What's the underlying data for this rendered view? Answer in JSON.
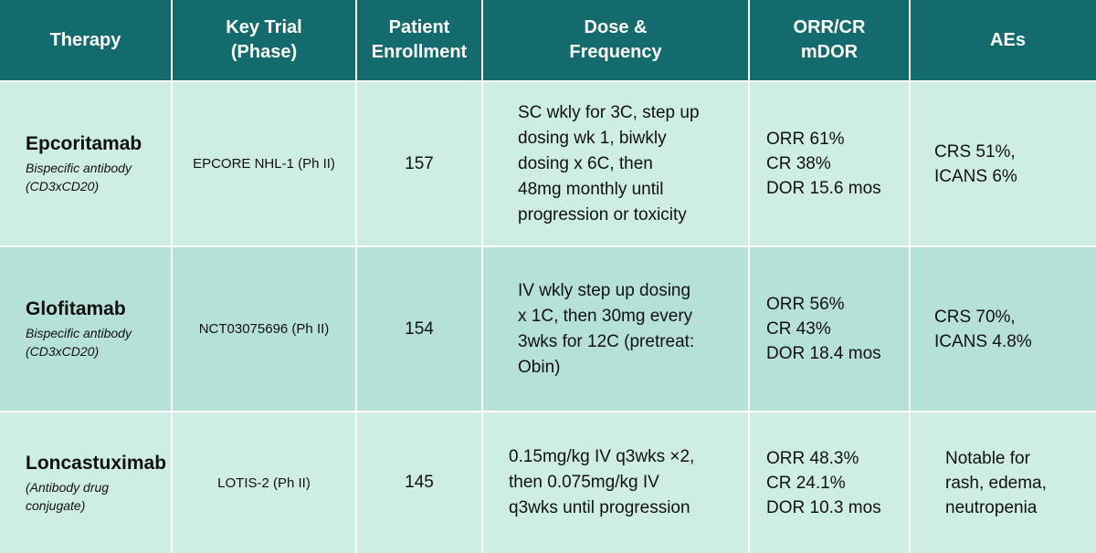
{
  "headers": {
    "therapy": "Therapy",
    "trial": "Key Trial\n(Phase)",
    "enrollment": "Patient\nEnrollment",
    "dose": "Dose &\nFrequency",
    "orr": "ORR/CR\nmDOR",
    "aes": "AEs"
  },
  "rows": [
    {
      "therapy": "Epcoritamab",
      "type": "Bispecific antibody\n(CD3xCD20)",
      "trial": "EPCORE NHL-1 (Ph II)",
      "enrollment": "157",
      "dose": "SC wkly for 3C, step up\ndosing wk 1, biwkly\ndosing x 6C, then\n48mg monthly until\nprogression or toxicity",
      "orr": "ORR 61%\nCR 38%\nDOR 15.6 mos",
      "aes": "CRS 51%,\nICANS 6%"
    },
    {
      "therapy": "Glofitamab",
      "type": "Bispecific antibody\n(CD3xCD20)",
      "trial": "NCT03075696 (Ph II)",
      "enrollment": "154",
      "dose": "IV wkly step up dosing\nx 1C, then 30mg every\n3wks for 12C (pretreat:\nObin)",
      "orr": "ORR 56%\nCR 43%\nDOR 18.4 mos",
      "aes": "CRS 70%,\nICANS 4.8%"
    },
    {
      "therapy": "Loncastuximab",
      "type": "(Antibody drug\nconjugate)",
      "trial": "LOTIS-2 (Ph II)",
      "enrollment": "145",
      "dose": "0.15mg/kg IV q3wks ×2,\nthen 0.075mg/kg IV\nq3wks until progression",
      "orr": "ORR 48.3%\nCR 24.1%\nDOR 10.3 mos",
      "aes": "Notable for\nrash, edema,\nneutropenia"
    }
  ],
  "colors": {
    "header": "#136b6e",
    "row_light": "#ceeee3",
    "row_dark": "#b5e1d8"
  }
}
